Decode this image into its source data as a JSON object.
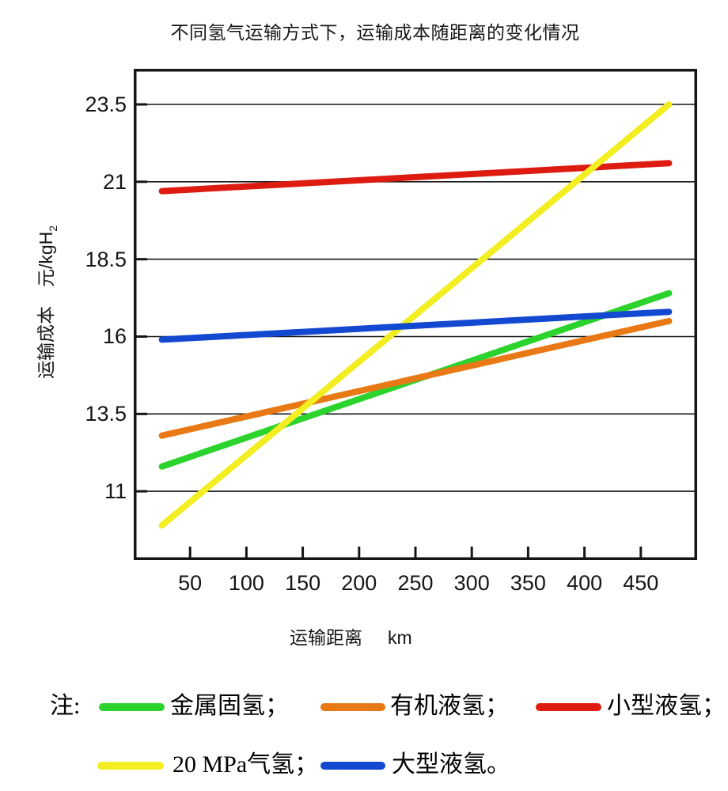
{
  "chart_data": {
    "type": "line",
    "title": "不同氢气运输方式下，运输成本随距离的变化情况",
    "xlabel": "运输距离",
    "x_unit": "km",
    "ylabel": "运输成本",
    "y_unit": "元/kgH₂",
    "xlim": [
      0,
      500
    ],
    "ylim": [
      8.78,
      24.65
    ],
    "xticks": [
      50,
      100,
      150,
      200,
      250,
      300,
      350,
      400,
      450
    ],
    "yticks": [
      11,
      13.5,
      16,
      18.5,
      21,
      23.5
    ],
    "grid": "horizontal-only",
    "legend_position": "below-chart",
    "series": [
      {
        "name": "金属固氢",
        "color": "#2CD32C",
        "x": [
          25,
          475
        ],
        "y": [
          11.8,
          17.4
        ]
      },
      {
        "name": "有机液氢",
        "color": "#E87914",
        "x": [
          25,
          475
        ],
        "y": [
          12.8,
          16.5
        ]
      },
      {
        "name": "小型液氢",
        "color": "#DE1B10",
        "x": [
          25,
          475
        ],
        "y": [
          20.7,
          21.6
        ]
      },
      {
        "name": "20 MPa气氢",
        "color": "#F2EE22",
        "x": [
          25,
          475
        ],
        "y": [
          9.9,
          23.5
        ]
      },
      {
        "name": "大型液氢",
        "color": "#1348D1",
        "x": [
          25,
          475
        ],
        "y": [
          15.9,
          16.8
        ]
      }
    ]
  },
  "axis": {
    "y_label": "运输成本",
    "y_unit_main": "元/kgH",
    "y_unit_sub": "2",
    "x_label": "运输距离",
    "x_unit": "km"
  },
  "legend": {
    "note_label": "注:",
    "rows": [
      {
        "items": [
          {
            "series": 0,
            "label": "金属固氢；"
          },
          {
            "series": 1,
            "label": "有机液氢；"
          },
          {
            "series": 2,
            "label": "小型液氢；"
          }
        ]
      },
      {
        "items": [
          {
            "series": 3,
            "label": "20 MPa气氢；"
          },
          {
            "series": 4,
            "label": "大型液氢。"
          }
        ]
      }
    ]
  }
}
